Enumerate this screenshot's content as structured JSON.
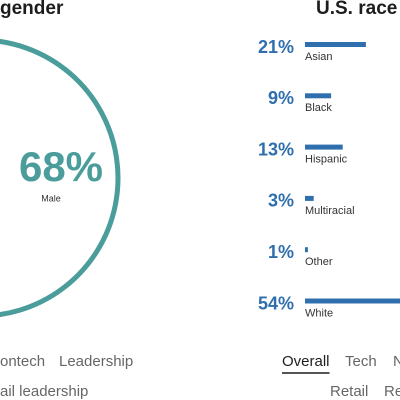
{
  "chart_data": [
    {
      "type": "pie",
      "title": "gender",
      "categories": [
        "Male"
      ],
      "values": [
        68
      ],
      "value_labels": [
        "68%"
      ],
      "color": "#4a9d9a"
    },
    {
      "type": "bar",
      "orientation": "horizontal",
      "title": "U.S. race a",
      "categories": [
        "Asian",
        "Black",
        "Hispanic",
        "Multiracial",
        "Other",
        "White"
      ],
      "values": [
        21,
        9,
        13,
        3,
        1,
        54
      ],
      "value_labels": [
        "21%",
        "9%",
        "13%",
        "3%",
        "1%",
        "54%"
      ],
      "color": "#2f6fad"
    }
  ],
  "tabs": {
    "row1": [
      "ontech",
      "Leadership",
      "Overall",
      "Tech",
      "N"
    ],
    "selected": 2,
    "row2": [
      "ail leadership",
      "Retail",
      "Re"
    ]
  }
}
